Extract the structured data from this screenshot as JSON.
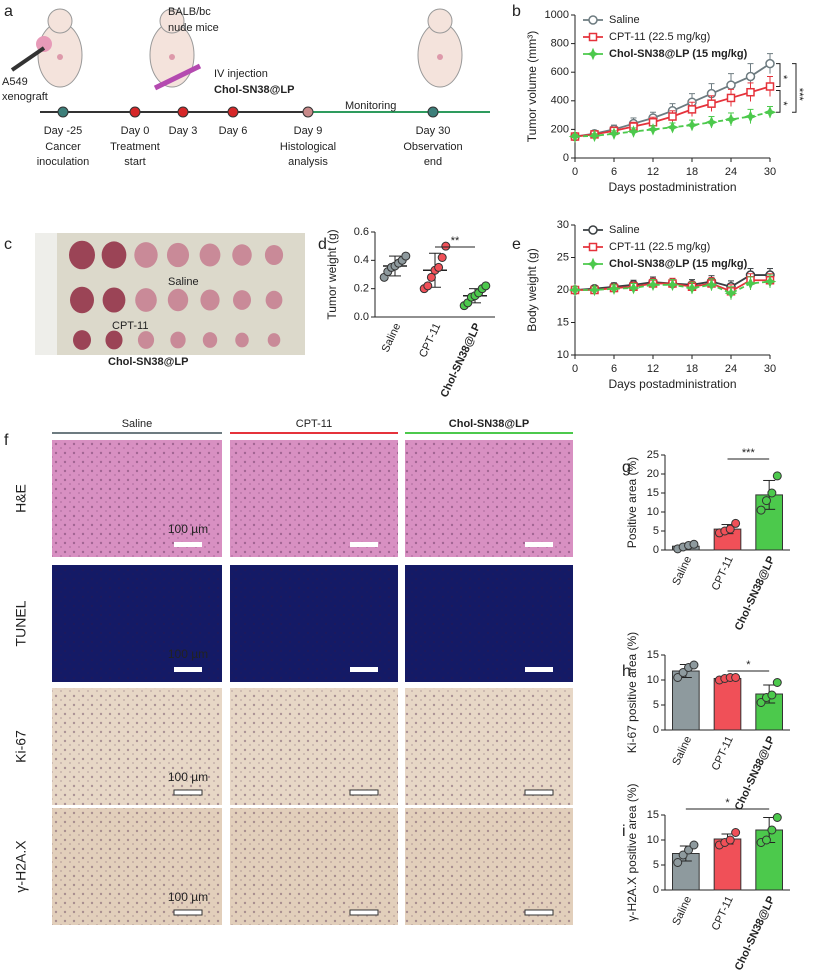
{
  "panels": [
    "a",
    "c",
    "f"
  ],
  "timeline": {
    "mice_label": [
      "BALB/bc",
      "nude mice"
    ],
    "xenograft_label": [
      "A549",
      "xenograft"
    ],
    "injection_label": [
      "IV injection",
      "Chol-SN38@LP"
    ],
    "monitoring_label": "Monitoring",
    "events": [
      {
        "day": "Day -25",
        "label": [
          "Cancer",
          "inoculation"
        ],
        "color": "#3d7f7a"
      },
      {
        "day": "Day 0",
        "label": [
          "Treatment",
          "start"
        ],
        "color": "#d62728"
      },
      {
        "day": "Day 3",
        "label": [],
        "color": "#d62728"
      },
      {
        "day": "Day 6",
        "label": [],
        "color": "#d62728"
      },
      {
        "day": "Day 9",
        "label": [
          "Histological",
          "analysis"
        ],
        "color": "#c98a8a"
      },
      {
        "day": "Day 30",
        "label": [
          "Observation",
          "end"
        ],
        "color": "#3d7f7a"
      }
    ]
  },
  "photo": {
    "labels": [
      "Saline",
      "CPT-11",
      "Chol-SN38@LP"
    ]
  },
  "histology": {
    "columns": [
      {
        "name": "Saline",
        "color": "#6d7b80"
      },
      {
        "name": "CPT-11",
        "color": "#e5323b"
      },
      {
        "name": "Chol-SN38@LP",
        "color": "#4cc94c"
      }
    ],
    "rows": [
      {
        "name": "H&E",
        "color": "#d890c2"
      },
      {
        "name": "TUNEL",
        "color": "#141a66"
      },
      {
        "name": "Ki-67",
        "color": "#e7d7c6"
      },
      {
        "name": "γ-H2A.X",
        "color": "#e2cfbb"
      }
    ],
    "scale_bar": "100 µm"
  },
  "chart_data": [
    {
      "type": "line",
      "panel": "b",
      "xlabel": "Days postadministration",
      "ylabel": "Tumor volume (mm³)",
      "x": [
        0,
        3,
        6,
        9,
        12,
        15,
        18,
        21,
        24,
        27,
        30
      ],
      "xlim": [
        0,
        30
      ],
      "xticks": [
        0,
        6,
        12,
        18,
        24,
        30
      ],
      "ylim": [
        0,
        1000
      ],
      "yticks": [
        0,
        200,
        400,
        600,
        800,
        1000
      ],
      "series": [
        {
          "name": "Saline",
          "color": "#6d7b80",
          "fill": "#a9b3b6",
          "values": [
            150,
            170,
            200,
            240,
            280,
            330,
            390,
            450,
            510,
            570,
            660
          ],
          "errors": [
            20,
            20,
            30,
            40,
            40,
            50,
            60,
            70,
            80,
            90,
            70
          ]
        },
        {
          "name": "CPT-11 (22.5 mg/kg)",
          "color": "#e5323b",
          "fill": "#f5a0a4",
          "values": [
            150,
            165,
            190,
            220,
            250,
            290,
            340,
            380,
            420,
            460,
            500
          ],
          "errors": [
            15,
            20,
            25,
            30,
            35,
            40,
            50,
            55,
            60,
            65,
            70
          ]
        },
        {
          "name": "Chol-SN38@LP (15 mg/kg)",
          "color": "#4cc94c",
          "fill": "#4cc94c",
          "values": [
            150,
            155,
            170,
            185,
            200,
            215,
            230,
            250,
            270,
            290,
            320
          ],
          "errors": [
            15,
            15,
            20,
            25,
            25,
            30,
            35,
            40,
            45,
            50,
            40
          ]
        }
      ],
      "annotations": [
        "*",
        "*",
        "***"
      ]
    },
    {
      "type": "dot",
      "panel": "d",
      "ylabel": "Tumor weight (g)",
      "categories": [
        "Saline",
        "CPT-11",
        "Chol-SN38@LP"
      ],
      "ylim": [
        0,
        0.6
      ],
      "yticks": [
        {
          "value": 0,
          "label": "0.0"
        },
        0.2,
        0.4,
        0.6
      ],
      "colors": [
        "#8e9a9e",
        "#f05058",
        "#4cc94c"
      ],
      "values": [
        0.36,
        0.33,
        0.15
      ],
      "errors": [
        0.07,
        0.12,
        0.05
      ],
      "points": [
        [
          0.28,
          0.32,
          0.35,
          0.36,
          0.38,
          0.4,
          0.43
        ],
        [
          0.2,
          0.22,
          0.28,
          0.33,
          0.35,
          0.42,
          0.5
        ],
        [
          0.08,
          0.1,
          0.14,
          0.15,
          0.17,
          0.2,
          0.22
        ]
      ],
      "annotations": [
        "**"
      ]
    },
    {
      "type": "line",
      "panel": "e",
      "xlabel": "Days postadministration",
      "ylabel": "Body weight (g)",
      "x": [
        0,
        3,
        6,
        9,
        12,
        15,
        18,
        21,
        24,
        27,
        30
      ],
      "xlim": [
        0,
        30
      ],
      "xticks": [
        0,
        6,
        12,
        18,
        24,
        30
      ],
      "ylim": [
        10,
        30
      ],
      "yticks": [
        10,
        15,
        20,
        25,
        30
      ],
      "series": [
        {
          "name": "Saline",
          "color": "#3a3f42",
          "fill": "#8e9a9e",
          "values": [
            20,
            20.2,
            20.5,
            20.8,
            21.2,
            21,
            20.8,
            21.3,
            20.5,
            22.3,
            22.3
          ],
          "errors": [
            0.5,
            0.5,
            0.6,
            0.7,
            0.8,
            0.7,
            0.8,
            0.9,
            0.9,
            1,
            1
          ]
        },
        {
          "name": "CPT-11 (22.5 mg/kg)",
          "color": "#e5323b",
          "fill": "#f5a0a4",
          "values": [
            20,
            20,
            20.3,
            20.5,
            21,
            21,
            20.5,
            21,
            19.8,
            21.5,
            21.5
          ],
          "errors": [
            0.5,
            0.5,
            0.6,
            0.7,
            0.8,
            0.8,
            0.8,
            0.9,
            1,
            1,
            1
          ]
        },
        {
          "name": "Chol-SN38@LP (15 mg/kg)",
          "color": "#4cc94c",
          "fill": "#4cc94c",
          "values": [
            20,
            20,
            20.2,
            20.3,
            20.8,
            20.8,
            20.3,
            20.8,
            19.5,
            21,
            21.3
          ],
          "errors": [
            0.5,
            0.5,
            0.6,
            0.7,
            0.8,
            0.8,
            0.9,
            0.9,
            1,
            1,
            1
          ]
        }
      ]
    },
    {
      "type": "bar",
      "panel": "g",
      "ylabel": "Positive area (%)",
      "categories": [
        "Saline",
        "CPT-11",
        "Chol-SN38@LP"
      ],
      "ylim": [
        0,
        25
      ],
      "yticks": [
        0,
        5,
        10,
        15,
        20,
        25
      ],
      "colors": [
        "#8e9a9e",
        "#f05058",
        "#4cc94c"
      ],
      "values": [
        1,
        5.5,
        14.5
      ],
      "errors": [
        0.5,
        1.2,
        3.8
      ],
      "points": [
        [
          0.3,
          0.8,
          1.2,
          1.5
        ],
        [
          4.5,
          5,
          5.5,
          7
        ],
        [
          10.5,
          13,
          15,
          19.5
        ]
      ],
      "annotations": [
        "***"
      ]
    },
    {
      "type": "bar",
      "panel": "h",
      "ylabel": "Ki-67 positive area (%)",
      "categories": [
        "Saline",
        "CPT-11",
        "Chol-SN38@LP"
      ],
      "ylim": [
        0,
        15
      ],
      "yticks": [
        0,
        5,
        10,
        15
      ],
      "colors": [
        "#8e9a9e",
        "#f05058",
        "#4cc94c"
      ],
      "values": [
        11.8,
        10.3,
        7.2
      ],
      "errors": [
        1.3,
        0.4,
        1.8
      ],
      "points": [
        [
          10.5,
          11.5,
          12.5,
          13
        ],
        [
          10,
          10.3,
          10.5,
          10.5
        ],
        [
          5.5,
          6.5,
          7,
          9.5
        ]
      ],
      "annotations": [
        "*"
      ]
    },
    {
      "type": "bar",
      "panel": "i",
      "ylabel": "γ-H2A.X positive area (%)",
      "categories": [
        "Saline",
        "CPT-11",
        "Chol-SN38@LP"
      ],
      "ylim": [
        0,
        15
      ],
      "yticks": [
        0,
        5,
        10,
        15
      ],
      "colors": [
        "#8e9a9e",
        "#f05058",
        "#4cc94c"
      ],
      "values": [
        7.3,
        10.2,
        12
      ],
      "errors": [
        1.5,
        1,
        2.5
      ],
      "points": [
        [
          5.5,
          7,
          8,
          9
        ],
        [
          9,
          9.5,
          10,
          11.5
        ],
        [
          9.5,
          10,
          12,
          14.5
        ]
      ],
      "annotations": [
        "*"
      ]
    }
  ]
}
